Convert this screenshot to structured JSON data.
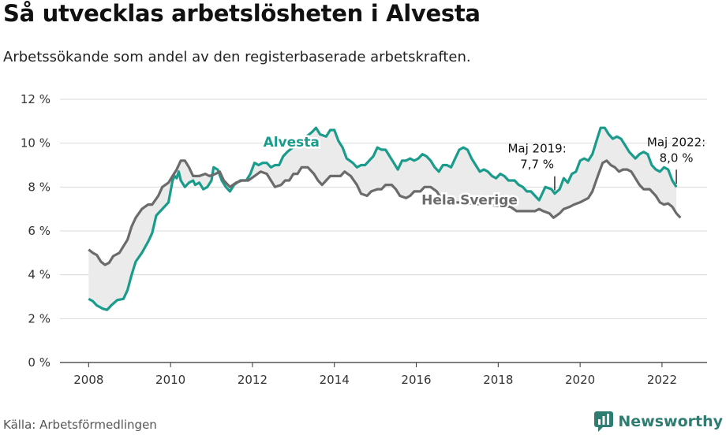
{
  "title": "Så utvecklas arbetslösheten i Alvesta",
  "subtitle": "Arbetssökande som andel av den registerbaserade arbetskraften.",
  "source": "Källa: Arbetsförmedlingen",
  "brand": "Newsworthy",
  "colors": {
    "alvesta": "#1a9c8c",
    "sverige": "#6b6b6b",
    "band": "#ebebeb",
    "grid": "#d9d9d9",
    "brand": "#2e7d70"
  },
  "chart_data": {
    "type": "line",
    "title": "Så utvecklas arbetslösheten i Alvesta",
    "ylabel": "",
    "xlabel": "",
    "ylim": [
      0,
      12
    ],
    "xlim": [
      2007.3,
      2023.1
    ],
    "y_ticks": [
      {
        "value": 0,
        "label": "0 %"
      },
      {
        "value": 2,
        "label": "2 %"
      },
      {
        "value": 4,
        "label": "4 %"
      },
      {
        "value": 6,
        "label": "6 %"
      },
      {
        "value": 8,
        "label": "8 %"
      },
      {
        "value": 10,
        "label": "10 %"
      },
      {
        "value": 12,
        "label": "12 %"
      }
    ],
    "x_ticks": [
      {
        "value": 2008,
        "label": "2008"
      },
      {
        "value": 2010,
        "label": "2010"
      },
      {
        "value": 2012,
        "label": "2012"
      },
      {
        "value": 2014,
        "label": "2014"
      },
      {
        "value": 2016,
        "label": "2016"
      },
      {
        "value": 2018,
        "label": "2018"
      },
      {
        "value": 2020,
        "label": "2020"
      },
      {
        "value": 2022,
        "label": "2022"
      }
    ],
    "series": [
      {
        "name": "Alvesta",
        "label_x": 2012.95,
        "label_y": 9.85,
        "points": [
          [
            2008.0,
            2.9
          ],
          [
            2008.1,
            2.8
          ],
          [
            2008.2,
            2.6
          ],
          [
            2008.35,
            2.45
          ],
          [
            2008.45,
            2.4
          ],
          [
            2008.55,
            2.6
          ],
          [
            2008.7,
            2.85
          ],
          [
            2008.85,
            2.9
          ],
          [
            2008.95,
            3.3
          ],
          [
            2009.05,
            4.0
          ],
          [
            2009.15,
            4.6
          ],
          [
            2009.3,
            5.0
          ],
          [
            2009.45,
            5.5
          ],
          [
            2009.55,
            5.9
          ],
          [
            2009.65,
            6.7
          ],
          [
            2009.75,
            6.9
          ],
          [
            2009.85,
            7.1
          ],
          [
            2009.95,
            7.3
          ],
          [
            2010.0,
            7.8
          ],
          [
            2010.05,
            8.3
          ],
          [
            2010.1,
            8.5
          ],
          [
            2010.15,
            8.4
          ],
          [
            2010.2,
            8.7
          ],
          [
            2010.25,
            8.3
          ],
          [
            2010.35,
            8.0
          ],
          [
            2010.45,
            8.2
          ],
          [
            2010.55,
            8.3
          ],
          [
            2010.6,
            8.1
          ],
          [
            2010.7,
            8.2
          ],
          [
            2010.8,
            7.9
          ],
          [
            2010.9,
            8.0
          ],
          [
            2011.0,
            8.3
          ],
          [
            2011.05,
            8.9
          ],
          [
            2011.15,
            8.8
          ],
          [
            2011.25,
            8.3
          ],
          [
            2011.35,
            8.0
          ],
          [
            2011.45,
            7.8
          ],
          [
            2011.55,
            8.1
          ],
          [
            2011.7,
            8.3
          ],
          [
            2011.85,
            8.3
          ],
          [
            2011.95,
            8.6
          ],
          [
            2012.05,
            9.1
          ],
          [
            2012.15,
            9.0
          ],
          [
            2012.25,
            9.1
          ],
          [
            2012.35,
            9.1
          ],
          [
            2012.45,
            8.9
          ],
          [
            2012.55,
            9.0
          ],
          [
            2012.65,
            9.0
          ],
          [
            2012.75,
            9.4
          ],
          [
            2012.85,
            9.6
          ],
          [
            2013.45,
            10.5
          ],
          [
            2013.55,
            10.7
          ],
          [
            2013.65,
            10.4
          ],
          [
            2013.8,
            10.3
          ],
          [
            2013.9,
            10.6
          ],
          [
            2014.0,
            10.6
          ],
          [
            2014.1,
            10.1
          ],
          [
            2014.2,
            9.8
          ],
          [
            2014.3,
            9.3
          ],
          [
            2014.45,
            9.1
          ],
          [
            2014.55,
            8.9
          ],
          [
            2014.65,
            9.0
          ],
          [
            2014.75,
            9.0
          ],
          [
            2014.85,
            9.2
          ],
          [
            2014.95,
            9.4
          ],
          [
            2015.05,
            9.8
          ],
          [
            2015.15,
            9.7
          ],
          [
            2015.25,
            9.7
          ],
          [
            2015.35,
            9.4
          ],
          [
            2015.45,
            9.1
          ],
          [
            2015.55,
            8.8
          ],
          [
            2015.65,
            9.2
          ],
          [
            2015.75,
            9.2
          ],
          [
            2015.85,
            9.3
          ],
          [
            2015.95,
            9.2
          ],
          [
            2016.05,
            9.3
          ],
          [
            2016.15,
            9.5
          ],
          [
            2016.25,
            9.4
          ],
          [
            2016.35,
            9.2
          ],
          [
            2016.45,
            8.9
          ],
          [
            2016.55,
            8.7
          ],
          [
            2016.65,
            9.0
          ],
          [
            2016.75,
            9.0
          ],
          [
            2016.85,
            8.9
          ],
          [
            2016.95,
            9.3
          ],
          [
            2017.05,
            9.7
          ],
          [
            2017.15,
            9.8
          ],
          [
            2017.25,
            9.7
          ],
          [
            2017.35,
            9.3
          ],
          [
            2017.45,
            9.0
          ],
          [
            2017.55,
            8.7
          ],
          [
            2017.65,
            8.8
          ],
          [
            2017.75,
            8.7
          ],
          [
            2017.85,
            8.5
          ],
          [
            2017.95,
            8.4
          ],
          [
            2018.05,
            8.6
          ],
          [
            2018.15,
            8.5
          ],
          [
            2018.25,
            8.3
          ],
          [
            2018.4,
            8.3
          ],
          [
            2018.5,
            8.1
          ],
          [
            2018.6,
            8.0
          ],
          [
            2018.7,
            7.8
          ],
          [
            2018.8,
            7.8
          ],
          [
            2018.9,
            7.6
          ],
          [
            2019.0,
            7.4
          ],
          [
            2019.05,
            7.6
          ],
          [
            2019.15,
            8.0
          ],
          [
            2019.3,
            7.9
          ],
          [
            2019.38,
            7.7
          ],
          [
            2019.5,
            7.9
          ],
          [
            2019.6,
            8.4
          ],
          [
            2019.7,
            8.2
          ],
          [
            2019.8,
            8.6
          ],
          [
            2019.9,
            8.7
          ],
          [
            2020.0,
            9.2
          ],
          [
            2020.1,
            9.3
          ],
          [
            2020.2,
            9.2
          ],
          [
            2020.3,
            9.5
          ],
          [
            2020.4,
            10.1
          ],
          [
            2020.5,
            10.7
          ],
          [
            2020.6,
            10.7
          ],
          [
            2020.7,
            10.4
          ],
          [
            2020.8,
            10.2
          ],
          [
            2020.9,
            10.3
          ],
          [
            2021.0,
            10.2
          ],
          [
            2021.1,
            9.9
          ],
          [
            2021.2,
            9.6
          ],
          [
            2021.35,
            9.3
          ],
          [
            2021.45,
            9.5
          ],
          [
            2021.55,
            9.6
          ],
          [
            2021.65,
            9.5
          ],
          [
            2021.75,
            9.0
          ],
          [
            2021.85,
            8.8
          ],
          [
            2021.95,
            8.7
          ],
          [
            2022.05,
            8.9
          ],
          [
            2022.15,
            8.8
          ],
          [
            2022.25,
            8.3
          ],
          [
            2022.35,
            8.0
          ]
        ]
      },
      {
        "name": "Hela Sverige",
        "label_x": 2017.3,
        "label_y": 7.2,
        "points": [
          [
            2008.0,
            5.15
          ],
          [
            2008.1,
            5.0
          ],
          [
            2008.2,
            4.9
          ],
          [
            2008.3,
            4.6
          ],
          [
            2008.4,
            4.45
          ],
          [
            2008.5,
            4.55
          ],
          [
            2008.6,
            4.85
          ],
          [
            2008.75,
            5.0
          ],
          [
            2008.85,
            5.3
          ],
          [
            2008.95,
            5.6
          ],
          [
            2009.05,
            6.2
          ],
          [
            2009.15,
            6.6
          ],
          [
            2009.3,
            7.0
          ],
          [
            2009.45,
            7.2
          ],
          [
            2009.55,
            7.2
          ],
          [
            2009.7,
            7.6
          ],
          [
            2009.8,
            8.0
          ],
          [
            2009.95,
            8.2
          ],
          [
            2010.05,
            8.5
          ],
          [
            2010.15,
            8.8
          ],
          [
            2010.25,
            9.2
          ],
          [
            2010.35,
            9.2
          ],
          [
            2010.45,
            8.9
          ],
          [
            2010.55,
            8.5
          ],
          [
            2010.7,
            8.5
          ],
          [
            2010.85,
            8.6
          ],
          [
            2010.95,
            8.5
          ],
          [
            2011.1,
            8.6
          ],
          [
            2011.2,
            8.7
          ],
          [
            2011.3,
            8.3
          ],
          [
            2011.45,
            8.0
          ],
          [
            2011.6,
            8.2
          ],
          [
            2011.75,
            8.3
          ],
          [
            2011.9,
            8.3
          ],
          [
            2012.05,
            8.5
          ],
          [
            2012.2,
            8.7
          ],
          [
            2012.35,
            8.6
          ],
          [
            2012.45,
            8.3
          ],
          [
            2012.55,
            8.0
          ],
          [
            2012.7,
            8.1
          ],
          [
            2012.8,
            8.3
          ],
          [
            2012.9,
            8.3
          ],
          [
            2013.0,
            8.6
          ],
          [
            2013.1,
            8.6
          ],
          [
            2013.2,
            8.9
          ],
          [
            2013.35,
            8.9
          ],
          [
            2013.5,
            8.6
          ],
          [
            2013.6,
            8.3
          ],
          [
            2013.7,
            8.1
          ],
          [
            2013.8,
            8.3
          ],
          [
            2013.9,
            8.5
          ],
          [
            2014.05,
            8.5
          ],
          [
            2014.15,
            8.5
          ],
          [
            2014.25,
            8.7
          ],
          [
            2014.4,
            8.5
          ],
          [
            2014.55,
            8.1
          ],
          [
            2014.65,
            7.7
          ],
          [
            2014.8,
            7.6
          ],
          [
            2014.9,
            7.8
          ],
          [
            2015.05,
            7.9
          ],
          [
            2015.15,
            7.9
          ],
          [
            2015.25,
            8.1
          ],
          [
            2015.4,
            8.1
          ],
          [
            2015.5,
            7.9
          ],
          [
            2015.6,
            7.6
          ],
          [
            2015.75,
            7.5
          ],
          [
            2015.85,
            7.6
          ],
          [
            2015.95,
            7.8
          ],
          [
            2016.1,
            7.8
          ],
          [
            2016.2,
            8.0
          ],
          [
            2016.35,
            8.0
          ],
          [
            2016.5,
            7.8
          ],
          [
            2016.6,
            7.5
          ],
          [
            2016.8,
            7.3
          ],
          [
            2017.0,
            7.3
          ],
          [
            2018.3,
            7.1
          ],
          [
            2018.45,
            6.9
          ],
          [
            2018.6,
            6.9
          ],
          [
            2018.75,
            6.9
          ],
          [
            2018.9,
            6.9
          ],
          [
            2019.0,
            7.0
          ],
          [
            2019.1,
            6.9
          ],
          [
            2019.25,
            6.8
          ],
          [
            2019.35,
            6.6
          ],
          [
            2019.5,
            6.8
          ],
          [
            2019.6,
            7.0
          ],
          [
            2019.75,
            7.1
          ],
          [
            2019.85,
            7.2
          ],
          [
            2020.0,
            7.3
          ],
          [
            2020.1,
            7.4
          ],
          [
            2020.2,
            7.5
          ],
          [
            2020.3,
            7.8
          ],
          [
            2020.45,
            8.6
          ],
          [
            2020.55,
            9.1
          ],
          [
            2020.65,
            9.2
          ],
          [
            2020.75,
            9.0
          ],
          [
            2020.85,
            8.9
          ],
          [
            2020.95,
            8.7
          ],
          [
            2021.05,
            8.8
          ],
          [
            2021.15,
            8.8
          ],
          [
            2021.25,
            8.7
          ],
          [
            2021.35,
            8.4
          ],
          [
            2021.45,
            8.1
          ],
          [
            2021.55,
            7.9
          ],
          [
            2021.7,
            7.9
          ],
          [
            2021.85,
            7.6
          ],
          [
            2021.95,
            7.3
          ],
          [
            2022.05,
            7.2
          ],
          [
            2022.15,
            7.25
          ],
          [
            2022.25,
            7.1
          ],
          [
            2022.35,
            6.8
          ],
          [
            2022.45,
            6.6
          ]
        ]
      }
    ],
    "annotations": [
      {
        "x": 2019.38,
        "y": 7.7,
        "lines": [
          "Maj 2019:",
          "7,7 %"
        ],
        "text_x": 2018.95
      },
      {
        "x": 2022.35,
        "y": 8.0,
        "lines": [
          "Maj 2022:",
          "8,0 %"
        ],
        "text_x": 2022.35
      }
    ]
  }
}
